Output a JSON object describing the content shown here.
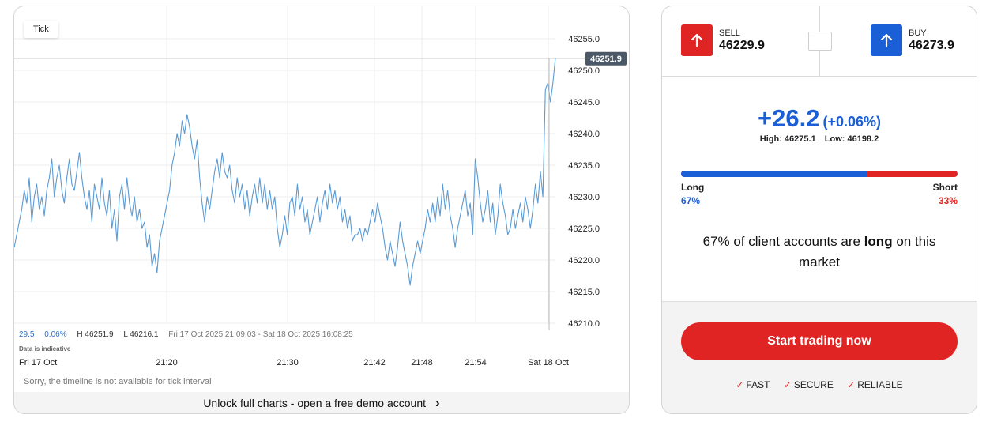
{
  "chart": {
    "tab_label": "Tick",
    "current_price_tag": "46251.9",
    "stats": {
      "change": "29.5",
      "change_pct": "0.06%",
      "high": "H 46251.9",
      "low": "L 46216.1",
      "range": "Fri 17 Oct 2025 21:09:03 - Sat 18 Oct 2025 16:08:25"
    },
    "indicative_note": "Data is indicative",
    "timeline_note": "Sorry, the timeline is not available for tick interval",
    "unlock_text": "Unlock full charts - open a free demo account",
    "colors": {
      "line": "#5b9bd5",
      "tag_bg": "#4a5868",
      "grid": "#ececec"
    }
  },
  "chart_data": {
    "type": "line",
    "title": "",
    "xlabel": "",
    "ylabel": "",
    "ylim": [
      46208,
      46258
    ],
    "y_ticks": [
      "46255.0",
      "46250.0",
      "46245.0",
      "46240.0",
      "46235.0",
      "46230.0",
      "46225.0",
      "46220.0",
      "46215.0",
      "46210.0"
    ],
    "x_tick_labels": [
      "Fri 17 Oct",
      "21:20",
      "21:30",
      "21:42",
      "21:48",
      "21:54",
      "Sat 18 Oct"
    ],
    "current_price": 46251.9,
    "series": [
      {
        "values": [
          46222,
          46224,
          46226,
          46228,
          46231,
          46229,
          46233,
          46226,
          46230,
          46232,
          46228,
          46230,
          46227,
          46231,
          46233,
          46236,
          46230,
          46233,
          46235,
          46231,
          46229,
          46233,
          46236,
          46232,
          46231,
          46234,
          46237,
          46233,
          46230,
          46228,
          46231,
          46226,
          46232,
          46230,
          46228,
          46233,
          46229,
          46227,
          46231,
          46225,
          46228,
          46223,
          46230,
          46232,
          46228,
          46233,
          46229,
          46227,
          46230,
          46226,
          46228,
          46225,
          46226,
          46222,
          46224,
          46219,
          46221,
          46218,
          46223,
          46225,
          46227,
          46229,
          46231,
          46235,
          46237,
          46240,
          46238,
          46242,
          46240,
          46243,
          46241,
          46238,
          46236,
          46239,
          46233,
          46229,
          46226,
          46230,
          46228,
          46231,
          46234,
          46236,
          46233,
          46237,
          46234,
          46233,
          46235,
          46231,
          46229,
          46233,
          46230,
          46232,
          46228,
          46231,
          46227,
          46230,
          46232,
          46229,
          46233,
          46229,
          46232,
          46228,
          46231,
          46228,
          46230,
          46225,
          46222,
          46224,
          46227,
          46224,
          46229,
          46230,
          46227,
          46232,
          46228,
          46230,
          46226,
          46228,
          46224,
          46226,
          46228,
          46230,
          46226,
          46229,
          46231,
          46228,
          46232,
          46229,
          46231,
          46228,
          46230,
          46226,
          46228,
          46225,
          46227,
          46223,
          46224,
          46224,
          46225,
          46223,
          46225,
          46224,
          46226,
          46228,
          46226,
          46229,
          46227,
          46225,
          46222,
          46220,
          46223,
          46221,
          46219,
          46222,
          46226,
          46223,
          46221,
          46219,
          46216,
          46219,
          46221,
          46223,
          46221,
          46223,
          46225,
          46228,
          46226,
          46229,
          46226,
          46230,
          46227,
          46232,
          46228,
          46231,
          46227,
          46225,
          46222,
          46225,
          46227,
          46229,
          46231,
          46227,
          46229,
          46224,
          46236,
          46233,
          46229,
          46226,
          46228,
          46231,
          46226,
          46229,
          46224,
          46227,
          46232,
          46229,
          46227,
          46224,
          46225,
          46228,
          46225,
          46227,
          46229,
          46226,
          46230,
          46228,
          46225,
          46228,
          46232,
          46229,
          46234,
          46230,
          46247,
          46248,
          46245,
          46248,
          46252
        ]
      }
    ],
    "grid": true,
    "legend": "none"
  },
  "trade": {
    "sell": {
      "label": "SELL",
      "price": "46229.9",
      "color": "#e02424"
    },
    "buy": {
      "label": "BUY",
      "price": "46273.9",
      "color": "#1a5fd6"
    },
    "change_value": "+26.2",
    "change_pct": "(+0.06%)",
    "high_text": "High: 46275.1",
    "low_text": "Low: 46198.2",
    "long_label": "Long",
    "short_label": "Short",
    "long_pct": "67%",
    "short_pct": "33%",
    "long_fraction": 0.67,
    "client_msg_1": "67% of client accounts are ",
    "client_msg_bold": "long",
    "client_msg_2": " on this market",
    "cta": "Start trading now",
    "features": [
      "FAST",
      "SECURE",
      "RELIABLE"
    ]
  }
}
